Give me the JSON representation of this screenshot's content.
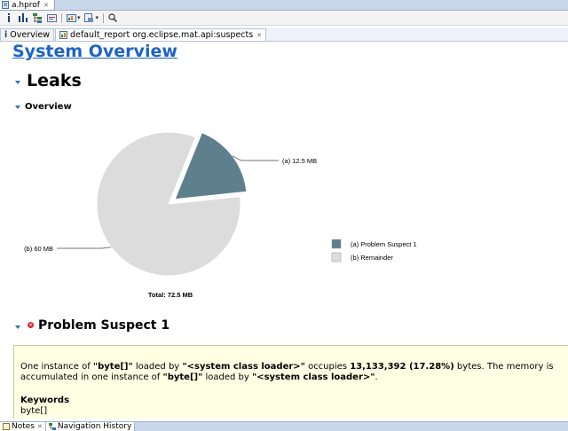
{
  "editor": {
    "tab_label": "a.hprof",
    "tab_close": "✕"
  },
  "toolbar": {
    "items": [
      "info-icon",
      "histogram-icon",
      "dominator-tree-icon",
      "oql-icon",
      "reports-icon",
      "query-browser-icon",
      "search-icon"
    ],
    "dropdown_glyph": "▾"
  },
  "subtabs": [
    {
      "icon": "i",
      "label": "Overview"
    },
    {
      "icon": "",
      "label": "default_report  org.eclipse.mat.api:suspects",
      "close": "✕"
    }
  ],
  "content": {
    "title": "System Overview",
    "leaks_heading": "Leaks",
    "overview_heading": "Overview",
    "chart_data": {
      "type": "pie",
      "unit": "MB",
      "slices": [
        {
          "label": "(a)",
          "value": 12.5,
          "value_text": "12.5 MB",
          "legend": "Problem Suspect 1",
          "color": "#5e7f8c",
          "exploded": true
        },
        {
          "label": "(b)",
          "value": 60,
          "value_text": "60 MB",
          "legend": "Remainder",
          "color": "#dcdcdc",
          "exploded": false
        }
      ],
      "total_text": "Total: 72.5 MB",
      "legend_position": "right"
    },
    "suspect": {
      "heading": "Problem Suspect 1",
      "desc_1": "One instance of ",
      "desc_2": "\"byte[]\"",
      "desc_3": " loaded by ",
      "desc_4": "\"<system class loader>\"",
      "desc_5": " occupies ",
      "desc_6": "13,133,392 (17.28%)",
      "desc_7": " bytes. The memory is accumulated in one instance of ",
      "desc_8": "\"byte[]\"",
      "desc_9": " loaded by ",
      "desc_10": "\"<system class loader>\"",
      "desc_11": ".",
      "keywords_title": "Keywords",
      "keywords_value": "byte[]"
    }
  },
  "bottom_tabs": [
    {
      "label": "Notes",
      "close": "✕"
    },
    {
      "label": "Navigation History"
    }
  ]
}
